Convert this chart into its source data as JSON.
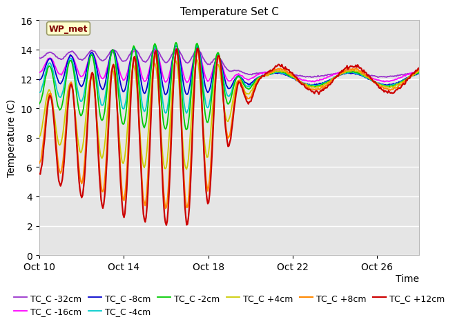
{
  "title": "Temperature Set C",
  "ylabel": "Temperature (C)",
  "xlabel": "Time",
  "ylim": [
    0,
    16
  ],
  "yticks": [
    0,
    2,
    4,
    6,
    8,
    10,
    12,
    14,
    16
  ],
  "background_color": "#e5e5e5",
  "series": [
    {
      "label": "TC_C -32cm",
      "color": "#9933cc"
    },
    {
      "label": "TC_C -16cm",
      "color": "#ff00ff"
    },
    {
      "label": "TC_C -8cm",
      "color": "#0000cc"
    },
    {
      "label": "TC_C -4cm",
      "color": "#00cccc"
    },
    {
      "label": "TC_C -2cm",
      "color": "#00cc00"
    },
    {
      "label": "TC_C +4cm",
      "color": "#cccc00"
    },
    {
      "label": "TC_C +8cm",
      "color": "#ff8800"
    },
    {
      "label": "TC_C +12cm",
      "color": "#cc0000"
    }
  ],
  "xtick_labels": [
    "Oct 10",
    "Oct 14",
    "Oct 18",
    "Oct 22",
    "Oct 26"
  ],
  "xtick_positions": [
    0,
    4,
    8,
    12,
    16
  ],
  "annotation_text": "WP_met",
  "annotation_color": "#800000",
  "annotation_bg": "#ffffcc",
  "title_fontsize": 11,
  "legend_fontsize": 9,
  "axis_fontsize": 10
}
